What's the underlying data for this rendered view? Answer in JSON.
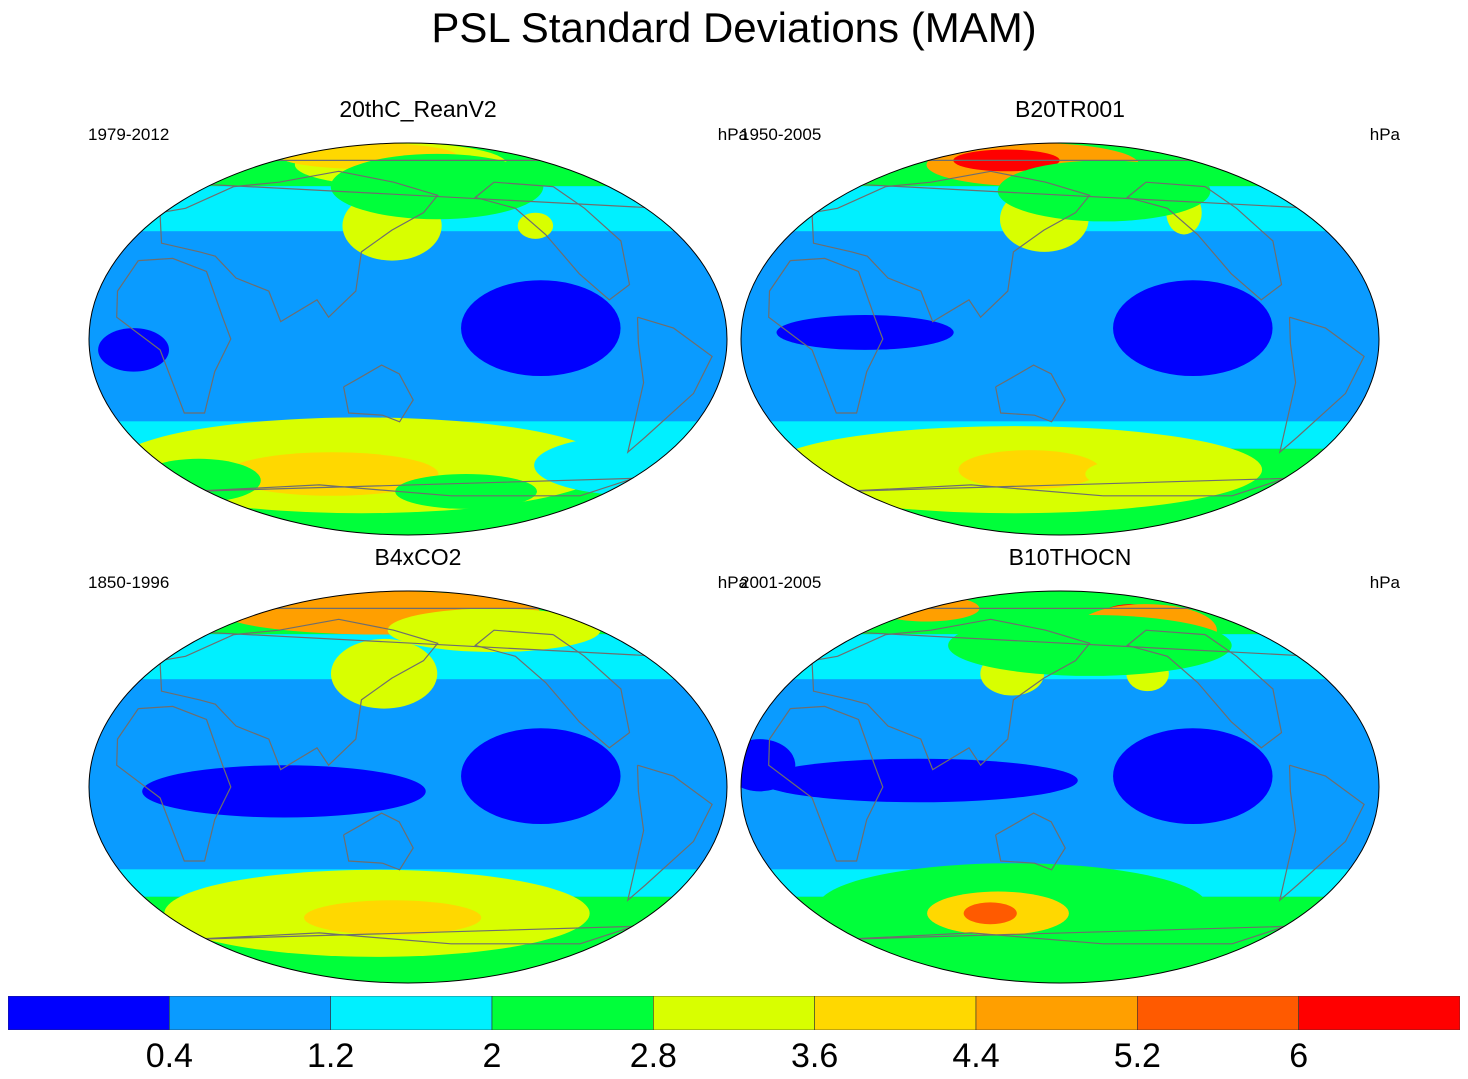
{
  "chart_data": {
    "type": "heatmap",
    "title": "PSL Standard Deviations (MAM)",
    "colorbar": {
      "levels": [
        "0.4",
        "1.2",
        "2",
        "2.8",
        "3.6",
        "4.4",
        "5.2",
        "6"
      ],
      "colors": [
        "#0000ff",
        "#0a9bff",
        "#00f0ff",
        "#00ff3a",
        "#d8ff00",
        "#ffd800",
        "#ff9f00",
        "#ff5a00",
        "#ff0000"
      ]
    },
    "panels": [
      {
        "title": "20thC_ReanV2",
        "period": "1979-2012",
        "units": "hPa",
        "blobs": [
          {
            "level": 4,
            "lon": -30,
            "lat": -58,
            "rlon": 140,
            "rlat": 22
          },
          {
            "level": 5,
            "lon": -50,
            "lat": -62,
            "rlon": 60,
            "rlat": 10
          },
          {
            "level": 3,
            "lon": 40,
            "lat": -70,
            "rlon": 40,
            "rlat": 8
          },
          {
            "level": 0,
            "lon": 75,
            "lat": 5,
            "rlon": 45,
            "rlat": 22
          },
          {
            "level": 0,
            "lon": -155,
            "lat": -5,
            "rlon": 20,
            "rlat": 10
          },
          {
            "level": 2,
            "lon": 150,
            "lat": -58,
            "rlon": 60,
            "rlat": 14
          },
          {
            "level": 3,
            "lon": -140,
            "lat": -65,
            "rlon": 35,
            "rlat": 10
          },
          {
            "level": 4,
            "lon": -5,
            "lat": 80,
            "rlon": 60,
            "rlat": 10
          },
          {
            "level": 5,
            "lon": -30,
            "lat": 84,
            "rlon": 50,
            "rlat": 6
          },
          {
            "level": 4,
            "lon": -10,
            "lat": 52,
            "rlon": 28,
            "rlat": 16
          },
          {
            "level": 4,
            "lon": 80,
            "lat": 52,
            "rlon": 10,
            "rlat": 6
          },
          {
            "level": 3,
            "lon": 20,
            "lat": 70,
            "rlon": 60,
            "rlat": 15
          }
        ]
      },
      {
        "title": "B20TR001",
        "period": "1950-2005",
        "units": "hPa",
        "blobs": [
          {
            "level": 4,
            "lon": -30,
            "lat": -60,
            "rlon": 140,
            "rlat": 20
          },
          {
            "level": 5,
            "lon": -20,
            "lat": -60,
            "rlon": 40,
            "rlat": 9
          },
          {
            "level": 4,
            "lon": 40,
            "lat": -62,
            "rlon": 20,
            "rlat": 6
          },
          {
            "level": 0,
            "lon": 75,
            "lat": 5,
            "rlon": 45,
            "rlat": 22
          },
          {
            "level": 0,
            "lon": -110,
            "lat": 3,
            "rlon": 50,
            "rlat": 8
          },
          {
            "level": 6,
            "lon": -20,
            "lat": 80,
            "rlon": 60,
            "rlat": 10
          },
          {
            "level": 8,
            "lon": -40,
            "lat": 82,
            "rlon": 30,
            "rlat": 5
          },
          {
            "level": 4,
            "lon": -10,
            "lat": 55,
            "rlon": 25,
            "rlat": 15
          },
          {
            "level": 4,
            "lon": 80,
            "lat": 58,
            "rlon": 10,
            "rlat": 10
          },
          {
            "level": 3,
            "lon": 30,
            "lat": 68,
            "rlon": 60,
            "rlat": 14
          }
        ]
      },
      {
        "title": "B4xCO2",
        "period": "1850-1996",
        "units": "hPa",
        "blobs": [
          {
            "level": 4,
            "lon": -20,
            "lat": -58,
            "rlon": 120,
            "rlat": 20
          },
          {
            "level": 5,
            "lon": -10,
            "lat": -60,
            "rlon": 50,
            "rlat": 8
          },
          {
            "level": 0,
            "lon": 75,
            "lat": 5,
            "rlon": 45,
            "rlat": 22
          },
          {
            "level": 0,
            "lon": -70,
            "lat": -2,
            "rlon": 80,
            "rlat": 12
          },
          {
            "level": 8,
            "lon": -60,
            "lat": 84,
            "rlon": 70,
            "rlat": 7
          },
          {
            "level": 6,
            "lon": -20,
            "lat": 80,
            "rlon": 90,
            "rlat": 10
          },
          {
            "level": 6,
            "lon": -10,
            "lat": 52,
            "rlon": 18,
            "rlat": 10
          },
          {
            "level": 4,
            "lon": -15,
            "lat": 52,
            "rlon": 30,
            "rlat": 16
          },
          {
            "level": 4,
            "lon": 60,
            "lat": 72,
            "rlon": 60,
            "rlat": 10
          }
        ]
      },
      {
        "title": "B10THOCN",
        "period": "2001-2005",
        "units": "hPa",
        "blobs": [
          {
            "level": 3,
            "lon": -30,
            "lat": -55,
            "rlon": 110,
            "rlat": 20
          },
          {
            "level": 5,
            "lon": -40,
            "lat": -58,
            "rlon": 40,
            "rlat": 10
          },
          {
            "level": 7,
            "lon": -45,
            "lat": -58,
            "rlon": 15,
            "rlat": 5
          },
          {
            "level": 0,
            "lon": 75,
            "lat": 5,
            "rlon": 45,
            "rlat": 22
          },
          {
            "level": 0,
            "lon": -80,
            "lat": 3,
            "rlon": 90,
            "rlat": 10
          },
          {
            "level": 0,
            "lon": -170,
            "lat": 10,
            "rlon": 20,
            "rlat": 12
          },
          {
            "level": 6,
            "lon": -100,
            "lat": 82,
            "rlon": 30,
            "rlat": 6
          },
          {
            "level": 8,
            "lon": 50,
            "lat": 75,
            "rlon": 20,
            "rlat": 9
          },
          {
            "level": 6,
            "lon": 60,
            "lat": 72,
            "rlon": 40,
            "rlat": 12
          },
          {
            "level": 4,
            "lon": -30,
            "lat": 52,
            "rlon": 18,
            "rlat": 10
          },
          {
            "level": 4,
            "lon": 55,
            "lat": 52,
            "rlon": 12,
            "rlat": 8
          },
          {
            "level": 3,
            "lon": 20,
            "lat": 65,
            "rlon": 80,
            "rlat": 14
          }
        ]
      }
    ]
  }
}
